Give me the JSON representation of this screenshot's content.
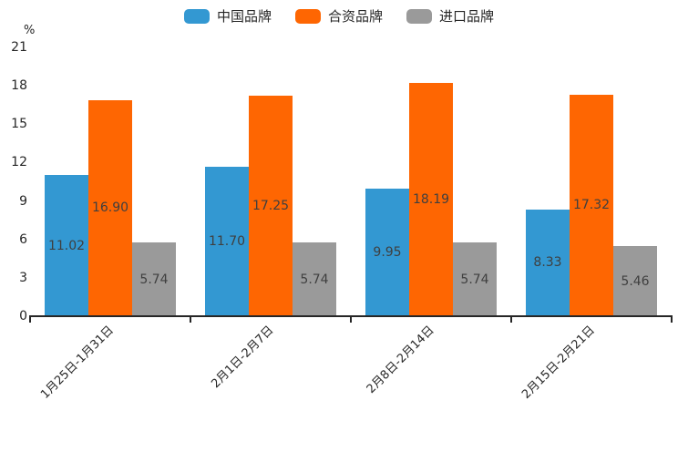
{
  "chart_data": {
    "type": "bar",
    "title": "",
    "unit_label": "%",
    "categories": [
      "1月25日-1月31日",
      "2月1日-2月7日",
      "2月8日-2月14日",
      "2月15日-2月21日"
    ],
    "series": [
      {
        "name": "中国品牌",
        "color": "#3398d2",
        "values": [
          11.02,
          11.7,
          9.95,
          8.33
        ]
      },
      {
        "name": "合资品牌",
        "color": "#fe6602",
        "values": [
          16.9,
          17.25,
          18.19,
          17.32
        ]
      },
      {
        "name": "进口品牌",
        "color": "#9a9a9a",
        "values": [
          5.74,
          5.74,
          5.74,
          5.46
        ]
      }
    ],
    "ylim": [
      0,
      21
    ],
    "yticks": [
      0,
      3,
      6,
      9,
      12,
      15,
      18,
      21
    ],
    "legend_position": "top-center",
    "grid": false,
    "value_labels": true,
    "value_label_format": "2-decimals",
    "xlabel_rotation_deg": 45
  },
  "colors": {
    "background": "#ffffff",
    "axis": "#262626",
    "tick_label": "#262626",
    "value_label": "#3f3f3f"
  }
}
